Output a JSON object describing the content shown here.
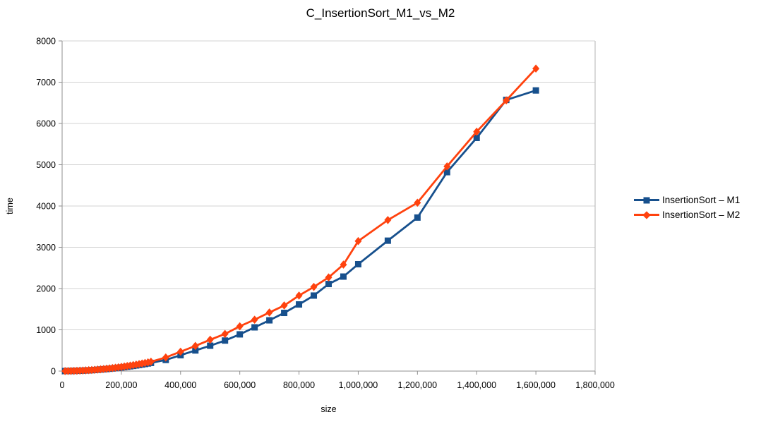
{
  "chart_data": {
    "type": "line",
    "title": "C_InsertionSort_M1_vs_M2",
    "xlabel": "size",
    "ylabel": "time",
    "xlim": [
      0,
      1800000
    ],
    "ylim": [
      0,
      8000
    ],
    "grid": "horizontal",
    "legend_position": "right",
    "x_ticks": [
      {
        "value": 0,
        "label": "0"
      },
      {
        "value": 200000,
        "label": "200,000"
      },
      {
        "value": 400000,
        "label": "400,000"
      },
      {
        "value": 600000,
        "label": "600,000"
      },
      {
        "value": 800000,
        "label": "800,000"
      },
      {
        "value": 1000000,
        "label": "1,000,000"
      },
      {
        "value": 1200000,
        "label": "1,200,000"
      },
      {
        "value": 1400000,
        "label": "1,400,000"
      },
      {
        "value": 1600000,
        "label": "1,600,000"
      },
      {
        "value": 1800000,
        "label": "1,800,000"
      }
    ],
    "y_ticks": [
      {
        "value": 0,
        "label": "0"
      },
      {
        "value": 1000,
        "label": "1000"
      },
      {
        "value": 2000,
        "label": "2000"
      },
      {
        "value": 3000,
        "label": "3000"
      },
      {
        "value": 4000,
        "label": "4000"
      },
      {
        "value": 5000,
        "label": "5000"
      },
      {
        "value": 6000,
        "label": "6000"
      },
      {
        "value": 7000,
        "label": "7000"
      },
      {
        "value": 8000,
        "label": "8000"
      }
    ],
    "x": [
      10000,
      20000,
      30000,
      40000,
      50000,
      60000,
      70000,
      80000,
      90000,
      100000,
      110000,
      120000,
      130000,
      140000,
      150000,
      160000,
      170000,
      180000,
      190000,
      200000,
      210000,
      220000,
      230000,
      240000,
      250000,
      260000,
      270000,
      280000,
      290000,
      300000,
      350000,
      400000,
      450000,
      500000,
      550000,
      600000,
      650000,
      700000,
      750000,
      800000,
      850000,
      900000,
      950000,
      1000000,
      1100000,
      1200000,
      1300000,
      1400000,
      1500000,
      1600000
    ],
    "series": [
      {
        "name": "InsertionSort – M1",
        "color": "#17508D",
        "marker": "square",
        "values": [
          1,
          2,
          3,
          5,
          7,
          9,
          12,
          15,
          18,
          22,
          27,
          32,
          38,
          44,
          50,
          57,
          64,
          72,
          80,
          88,
          97,
          106,
          116,
          126,
          137,
          148,
          160,
          172,
          185,
          198,
          270,
          385,
          500,
          615,
          740,
          890,
          1060,
          1230,
          1410,
          1615,
          1830,
          2110,
          2290,
          2590,
          3160,
          3720,
          4820,
          5650,
          6570,
          6800
        ]
      },
      {
        "name": "InsertionSort – M2",
        "color": "#FF420E",
        "marker": "diamond",
        "values": [
          1,
          2,
          4,
          6,
          8,
          11,
          14,
          18,
          22,
          26,
          31,
          37,
          44,
          51,
          58,
          66,
          74,
          83,
          92,
          102,
          112,
          123,
          134,
          146,
          158,
          171,
          184,
          198,
          212,
          227,
          330,
          470,
          610,
          760,
          900,
          1085,
          1245,
          1420,
          1590,
          1830,
          2040,
          2270,
          2580,
          3150,
          3660,
          4080,
          4960,
          5800,
          6560,
          7330
        ]
      }
    ]
  }
}
